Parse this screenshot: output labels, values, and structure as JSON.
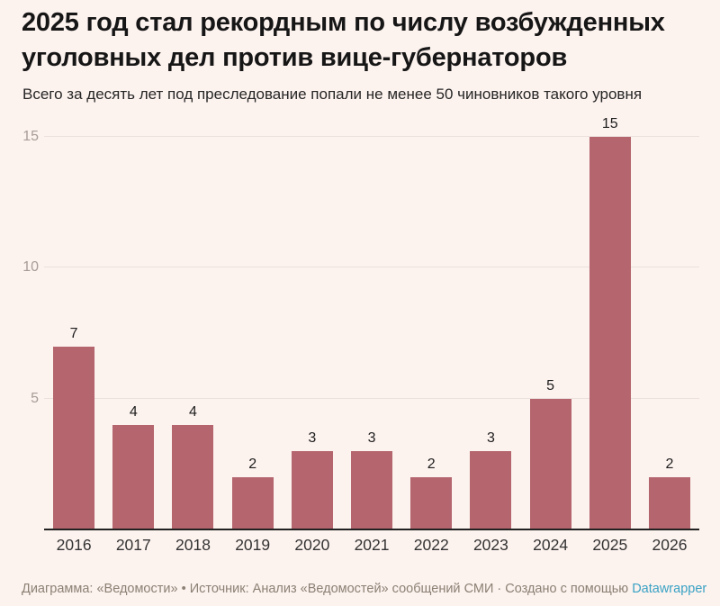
{
  "title": "2025 год стал рекордным по числу возбужденных уголовных дел против вице-губернаторов",
  "subtitle": "Всего за десять лет под преследование попали не менее 50 чиновников такого уровня",
  "chart_data": {
    "type": "bar",
    "categories": [
      "2016",
      "2017",
      "2018",
      "2019",
      "2020",
      "2021",
      "2022",
      "2023",
      "2024",
      "2025",
      "2026"
    ],
    "values": [
      7,
      4,
      4,
      2,
      3,
      3,
      2,
      3,
      5,
      15,
      2
    ],
    "title": "2025 год стал рекордным по числу возбужденных уголовных дел против вице-губернаторов",
    "subtitle": "Всего за десять лет под преследование попали не менее 50 чиновников такого уровня",
    "xlabel": "",
    "ylabel": "",
    "ylim": [
      0,
      15
    ],
    "yticks": [
      5,
      10,
      15
    ],
    "grid": true,
    "legend": "none",
    "data_labels": true,
    "bar_color": "#b4656e",
    "background_color": "#fcf2ee"
  },
  "footer": {
    "text": "Диаграмма: «Ведомости» • Источник: Анализ «Ведомостей» сообщений СМИ · Создано с помощью ",
    "link_label": "Datawrapper"
  },
  "colors": {
    "background": "#fcf2ee",
    "bar": "#b4656e",
    "gridline": "#ebe0dc",
    "baseline": "#222222",
    "tick_label": "#a89d96",
    "axis_label": "#333333",
    "value_label": "#1d1d1d",
    "footer_text": "#8c8174",
    "link": "#39a2c4"
  }
}
